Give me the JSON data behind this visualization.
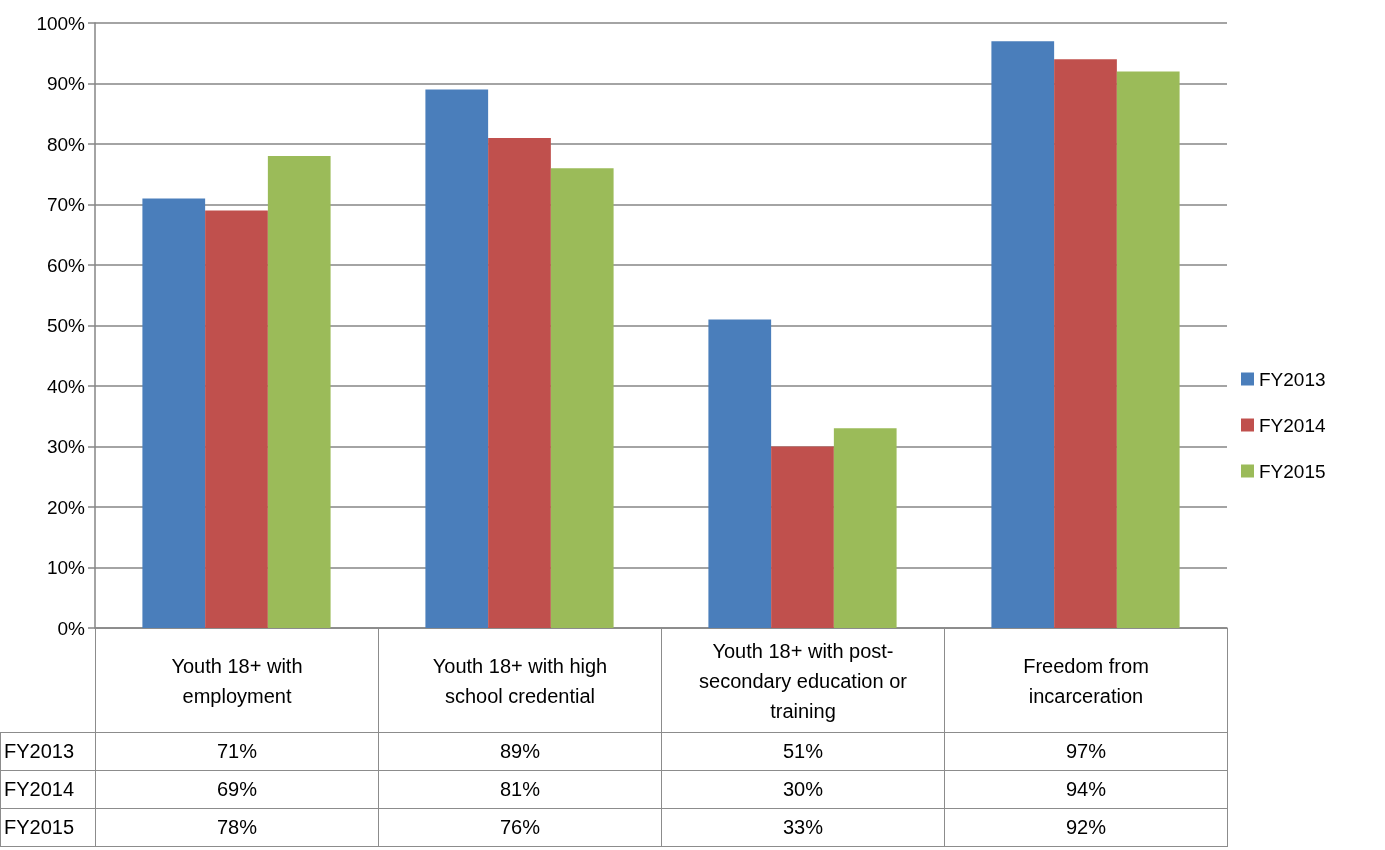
{
  "chart_data": {
    "type": "bar",
    "categories": [
      "Youth 18+ with employment",
      "Youth 18+ with high school credential",
      "Youth 18+ with post-secondary education or training",
      "Freedom from incarceration"
    ],
    "series": [
      {
        "name": "FY2013",
        "color": "#4a7ebb",
        "values": [
          71,
          89,
          51,
          97
        ],
        "value_labels": [
          "71%",
          "89%",
          "51%",
          "97%"
        ]
      },
      {
        "name": "FY2014",
        "color": "#c0504d",
        "values": [
          69,
          81,
          30,
          94
        ],
        "value_labels": [
          "69%",
          "81%",
          "30%",
          "94%"
        ]
      },
      {
        "name": "FY2015",
        "color": "#9bbb59",
        "values": [
          78,
          76,
          33,
          92
        ],
        "value_labels": [
          "78%",
          "76%",
          "33%",
          "92%"
        ]
      }
    ],
    "ylim": [
      0,
      100
    ],
    "yticks": [
      {
        "value": 0,
        "label": "0%"
      },
      {
        "value": 10,
        "label": "10%"
      },
      {
        "value": 20,
        "label": "20%"
      },
      {
        "value": 30,
        "label": "30%"
      },
      {
        "value": 40,
        "label": "40%"
      },
      {
        "value": 50,
        "label": "50%"
      },
      {
        "value": 60,
        "label": "60%"
      },
      {
        "value": 70,
        "label": "70%"
      },
      {
        "value": 80,
        "label": "80%"
      },
      {
        "value": 90,
        "label": "90%"
      },
      {
        "value": 100,
        "label": "100%"
      }
    ],
    "grid": "y",
    "legend": "right"
  }
}
